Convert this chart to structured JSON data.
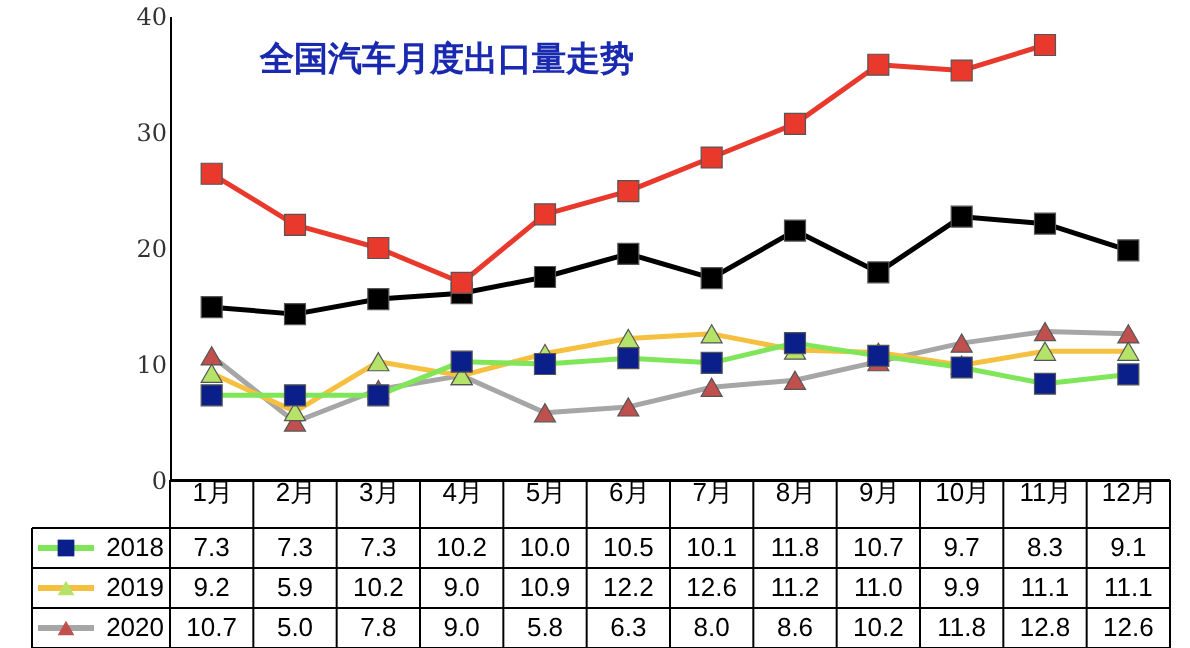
{
  "chart_data": {
    "type": "line",
    "title": "全国汽车月度出口量走势",
    "categories": [
      "1月",
      "2月",
      "3月",
      "4月",
      "5月",
      "6月",
      "7月",
      "8月",
      "9月",
      "10月",
      "11月",
      "12月"
    ],
    "ylim": [
      0,
      40
    ],
    "yticks": [
      0,
      10,
      20,
      30,
      40
    ],
    "grid": false,
    "legend": "bottom left",
    "series": [
      {
        "color": "#e8392c",
        "marker": "square",
        "colors": [
          "#e8392c",
          "#e8392c",
          "#e8392c",
          "#e8392c",
          "#e8392c",
          "#e8392c",
          "#e8392c",
          "#e8392c",
          "#e8392c",
          "#e8392c",
          "#e8392c",
          "#e8392c"
        ],
        "values": [
          26.4,
          22.0,
          20.0,
          17.0,
          22.9,
          24.9,
          27.8,
          30.7,
          35.8,
          35.3,
          37.5,
          null
        ]
      },
      {
        "color": "#000000",
        "marker": "square",
        "colors": [
          "#000000",
          "#000000",
          "#000000",
          "#000000",
          "#000000",
          "#000000",
          "#000000",
          "#000000",
          "#000000",
          "#000000",
          "#000000",
          "#000000"
        ],
        "values": [
          14.9,
          14.3,
          15.6,
          16.1,
          17.5,
          19.5,
          17.4,
          21.5,
          17.9,
          22.7,
          22.1,
          19.8
        ]
      },
      {
        "name": "2018",
        "color": "#7fe65a",
        "marker": "square",
        "colors": [
          "#0a1f8a",
          "#0a1f8a",
          "#0a1f8a",
          "#0a1f8a",
          "#0a1f8a",
          "#0a1f8a",
          "#0a1f8a",
          "#0a1f8a",
          "#0a1f8a",
          "#0a1f8a",
          "#0a1f8a",
          "#0a1f8a"
        ],
        "values": [
          7.3,
          7.3,
          7.3,
          10.2,
          10.0,
          10.5,
          10.1,
          11.8,
          10.7,
          9.7,
          8.3,
          9.1
        ],
        "value_labels": [
          "7.3",
          "7.3",
          "7.3",
          "10.2",
          "10.0",
          "10.5",
          "10.1",
          "11.8",
          "10.7",
          "9.7",
          "8.3",
          "9.1"
        ]
      },
      {
        "name": "2019",
        "color": "#f5c040",
        "marker": "triangle",
        "colors": [
          "#b5e36a",
          "#b5e36a",
          "#b5e36a",
          "#b5e36a",
          "#b5e36a",
          "#b5e36a",
          "#b5e36a",
          "#b5e36a",
          "#b5e36a",
          "#b5e36a",
          "#b5e36a",
          "#b5e36a"
        ],
        "values": [
          9.2,
          5.9,
          10.2,
          9.0,
          10.9,
          12.2,
          12.6,
          11.2,
          11.0,
          9.9,
          11.1,
          11.1
        ],
        "value_labels": [
          "9.2",
          "5.9",
          "10.2",
          "9.0",
          "10.9",
          "12.2",
          "12.6",
          "11.2",
          "11.0",
          "9.9",
          "11.1",
          "11.1"
        ]
      },
      {
        "name": "2020",
        "color": "#a6a6a6",
        "marker": "triangle",
        "colors": [
          "#c0504d",
          "#c0504d",
          "#c0504d",
          "#c0504d",
          "#c0504d",
          "#c0504d",
          "#c0504d",
          "#c0504d",
          "#c0504d",
          "#c0504d",
          "#c0504d",
          "#c0504d"
        ],
        "values": [
          10.7,
          5.0,
          7.8,
          9.0,
          5.8,
          6.3,
          8.0,
          8.6,
          10.2,
          11.8,
          12.8,
          12.6
        ],
        "value_labels": [
          "10.7",
          "5.0",
          "7.8",
          "9.0",
          "5.8",
          "6.3",
          "8.0",
          "8.6",
          "10.2",
          "11.8",
          "12.8",
          "12.6"
        ]
      }
    ]
  }
}
